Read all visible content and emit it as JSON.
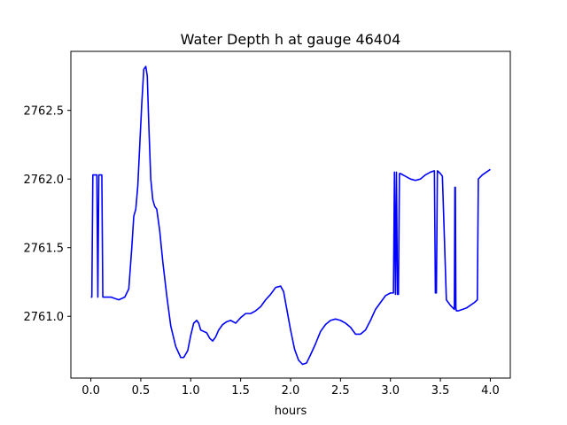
{
  "chart_data": {
    "type": "line",
    "title": "Water Depth h at gauge 46404",
    "xlabel": "hours",
    "ylabel": "",
    "xlim": [
      -0.2,
      4.2
    ],
    "ylim": [
      2760.55,
      2762.93
    ],
    "xticks": [
      {
        "value": 0.0,
        "label": "0.0"
      },
      {
        "value": 0.5,
        "label": "0.5"
      },
      {
        "value": 1.0,
        "label": "1.0"
      },
      {
        "value": 1.5,
        "label": "1.5"
      },
      {
        "value": 2.0,
        "label": "2.0"
      },
      {
        "value": 2.5,
        "label": "2.5"
      },
      {
        "value": 3.0,
        "label": "3.0"
      },
      {
        "value": 3.5,
        "label": "3.5"
      },
      {
        "value": 4.0,
        "label": "4.0"
      }
    ],
    "yticks": [
      {
        "value": 2761.0,
        "label": "2761.0"
      },
      {
        "value": 2761.5,
        "label": "2761.5"
      },
      {
        "value": 2762.0,
        "label": "2762.0"
      },
      {
        "value": 2762.5,
        "label": "2762.5"
      }
    ],
    "grid": false,
    "series": [
      {
        "color": "#0000ff",
        "x": [
          0.0,
          0.01,
          0.02,
          0.06,
          0.07,
          0.08,
          0.1,
          0.11,
          0.12,
          0.14,
          0.2,
          0.28,
          0.34,
          0.38,
          0.41,
          0.43,
          0.45,
          0.47,
          0.49,
          0.51,
          0.53,
          0.55,
          0.565,
          0.58,
          0.6,
          0.62,
          0.64,
          0.66,
          0.69,
          0.72,
          0.76,
          0.8,
          0.85,
          0.9,
          0.93,
          0.97,
          1.0,
          1.03,
          1.06,
          1.08,
          1.1,
          1.13,
          1.16,
          1.19,
          1.22,
          1.25,
          1.28,
          1.32,
          1.36,
          1.4,
          1.45,
          1.5,
          1.55,
          1.6,
          1.65,
          1.7,
          1.75,
          1.8,
          1.85,
          1.9,
          1.93,
          1.96,
          2.0,
          2.04,
          2.08,
          2.12,
          2.16,
          2.2,
          2.25,
          2.3,
          2.35,
          2.4,
          2.45,
          2.5,
          2.55,
          2.6,
          2.65,
          2.7,
          2.75,
          2.8,
          2.85,
          2.9,
          2.95,
          3.0,
          3.03,
          3.04,
          3.05,
          3.06,
          3.07,
          3.08,
          3.09,
          3.1,
          3.15,
          3.2,
          3.25,
          3.3,
          3.35,
          3.4,
          3.44,
          3.45,
          3.46,
          3.47,
          3.5,
          3.52,
          3.56,
          3.6,
          3.64,
          3.645,
          3.65,
          3.655,
          3.66,
          3.68,
          3.72,
          3.76,
          3.8,
          3.84,
          3.87,
          3.88,
          3.92,
          3.96,
          4.0
        ],
        "y": [
          2761.14,
          2761.14,
          2762.03,
          2762.03,
          2761.14,
          2762.03,
          2762.03,
          2762.03,
          2761.14,
          2761.14,
          2761.14,
          2761.12,
          2761.14,
          2761.2,
          2761.5,
          2761.73,
          2761.78,
          2761.95,
          2762.25,
          2762.55,
          2762.8,
          2762.82,
          2762.75,
          2762.4,
          2762.0,
          2761.85,
          2761.8,
          2761.78,
          2761.62,
          2761.4,
          2761.15,
          2760.93,
          2760.78,
          2760.7,
          2760.7,
          2760.75,
          2760.86,
          2760.95,
          2760.97,
          2760.95,
          2760.9,
          2760.89,
          2760.88,
          2760.84,
          2760.82,
          2760.85,
          2760.9,
          2760.94,
          2760.96,
          2760.97,
          2760.95,
          2760.99,
          2761.02,
          2761.02,
          2761.04,
          2761.07,
          2761.12,
          2761.16,
          2761.21,
          2761.22,
          2761.18,
          2761.06,
          2760.9,
          2760.76,
          2760.68,
          2760.65,
          2760.66,
          2760.72,
          2760.8,
          2760.89,
          2760.94,
          2760.97,
          2760.98,
          2760.97,
          2760.95,
          2760.92,
          2760.87,
          2760.87,
          2760.9,
          2760.97,
          2761.05,
          2761.1,
          2761.15,
          2761.17,
          2761.17,
          2762.05,
          2761.16,
          2762.05,
          2761.16,
          2761.16,
          2762.04,
          2762.04,
          2762.02,
          2762.0,
          2761.99,
          2762.0,
          2762.03,
          2762.05,
          2762.06,
          2761.17,
          2761.17,
          2762.06,
          2762.04,
          2762.02,
          2761.12,
          2761.08,
          2761.05,
          2761.94,
          2761.94,
          2761.06,
          2761.04,
          2761.04,
          2761.05,
          2761.06,
          2761.08,
          2761.1,
          2761.12,
          2762.0,
          2762.03,
          2762.05,
          2762.07
        ]
      }
    ]
  }
}
